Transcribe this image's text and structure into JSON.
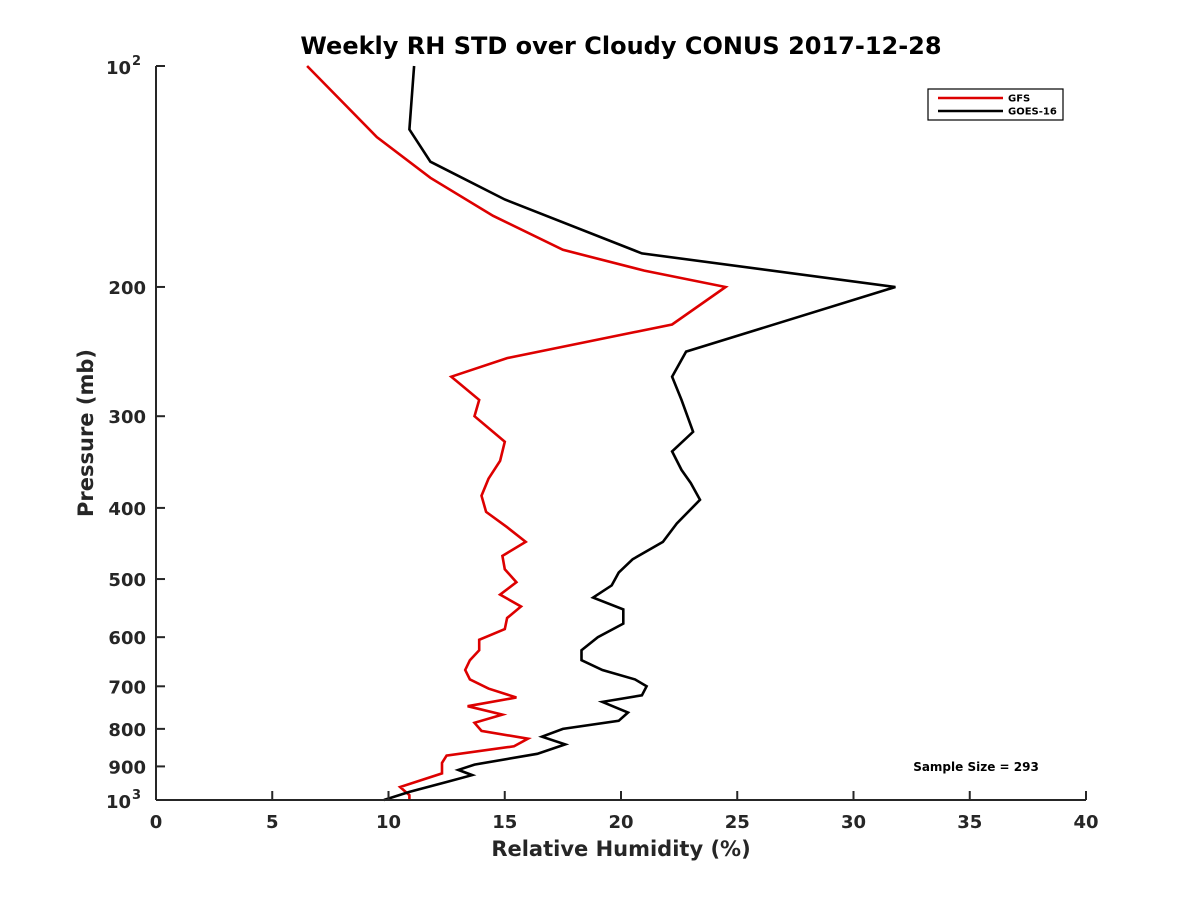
{
  "chart_data": {
    "type": "line",
    "title": "Weekly RH STD over Cloudy CONUS 2017-12-28",
    "xlabel": "Relative Humidity (%)",
    "ylabel": "Pressure (mb)",
    "xlim": [
      0,
      40
    ],
    "ylim": [
      100,
      1000
    ],
    "yscale": "log",
    "y_reversed": true,
    "grid": false,
    "legend_position": "top-right",
    "x_ticks": [
      "0",
      "5",
      "10",
      "15",
      "20",
      "25",
      "30",
      "35",
      "40"
    ],
    "y_ticks": [
      {
        "value": 100,
        "base": "10",
        "exp": "2"
      },
      {
        "value": 200,
        "label": "200"
      },
      {
        "value": 300,
        "label": "300"
      },
      {
        "value": 400,
        "label": "400"
      },
      {
        "value": 500,
        "label": "500"
      },
      {
        "value": 600,
        "label": "600"
      },
      {
        "value": 700,
        "label": "700"
      },
      {
        "value": 800,
        "label": "800"
      },
      {
        "value": 900,
        "label": "900"
      },
      {
        "value": 1000,
        "base": "10",
        "exp": "3"
      }
    ],
    "annotation": "Sample Size = 293",
    "series": [
      {
        "name": "GFS",
        "color": "#dd0000",
        "points": [
          [
            6.5,
            100
          ],
          [
            9.5,
            125
          ],
          [
            11.8,
            142
          ],
          [
            14.5,
            160
          ],
          [
            17.5,
            178
          ],
          [
            21.0,
            190
          ],
          [
            24.5,
            200
          ],
          [
            22.2,
            225
          ],
          [
            15.1,
            250
          ],
          [
            12.7,
            265
          ],
          [
            13.9,
            285
          ],
          [
            13.7,
            300
          ],
          [
            15.0,
            325
          ],
          [
            14.8,
            345
          ],
          [
            14.3,
            365
          ],
          [
            14.0,
            385
          ],
          [
            14.2,
            405
          ],
          [
            15.1,
            425
          ],
          [
            15.9,
            445
          ],
          [
            14.9,
            465
          ],
          [
            15.0,
            485
          ],
          [
            15.5,
            505
          ],
          [
            14.8,
            525
          ],
          [
            15.7,
            545
          ],
          [
            15.1,
            565
          ],
          [
            15.0,
            585
          ],
          [
            13.9,
            605
          ],
          [
            13.9,
            625
          ],
          [
            13.5,
            645
          ],
          [
            13.3,
            665
          ],
          [
            13.5,
            685
          ],
          [
            14.3,
            705
          ],
          [
            15.5,
            725
          ],
          [
            13.4,
            745
          ],
          [
            14.9,
            765
          ],
          [
            13.7,
            785
          ],
          [
            14.0,
            805
          ],
          [
            16.0,
            825
          ],
          [
            15.4,
            845
          ],
          [
            12.5,
            870
          ],
          [
            12.3,
            890
          ],
          [
            12.3,
            920
          ],
          [
            10.5,
            960
          ],
          [
            10.9,
            985
          ],
          [
            10.9,
            1000
          ]
        ]
      },
      {
        "name": "GOES-16",
        "color": "#000000",
        "points": [
          [
            11.1,
            100
          ],
          [
            10.9,
            122
          ],
          [
            11.8,
            135
          ],
          [
            15.0,
            152
          ],
          [
            20.9,
            180
          ],
          [
            31.8,
            200
          ],
          [
            22.8,
            245
          ],
          [
            22.2,
            265
          ],
          [
            22.6,
            285
          ],
          [
            23.1,
            315
          ],
          [
            22.2,
            335
          ],
          [
            22.6,
            355
          ],
          [
            23.0,
            370
          ],
          [
            23.4,
            390
          ],
          [
            22.4,
            420
          ],
          [
            21.8,
            445
          ],
          [
            20.5,
            470
          ],
          [
            19.9,
            490
          ],
          [
            19.6,
            510
          ],
          [
            18.8,
            530
          ],
          [
            20.1,
            550
          ],
          [
            20.1,
            575
          ],
          [
            19.0,
            600
          ],
          [
            18.3,
            625
          ],
          [
            18.3,
            645
          ],
          [
            19.2,
            665
          ],
          [
            20.6,
            685
          ],
          [
            21.1,
            700
          ],
          [
            20.9,
            720
          ],
          [
            19.2,
            735
          ],
          [
            20.3,
            760
          ],
          [
            19.9,
            780
          ],
          [
            17.5,
            800
          ],
          [
            16.6,
            820
          ],
          [
            17.6,
            840
          ],
          [
            16.4,
            865
          ],
          [
            13.7,
            895
          ],
          [
            13.0,
            910
          ],
          [
            13.6,
            925
          ],
          [
            12.5,
            945
          ],
          [
            10.9,
            975
          ],
          [
            9.8,
            1000
          ]
        ]
      }
    ]
  }
}
